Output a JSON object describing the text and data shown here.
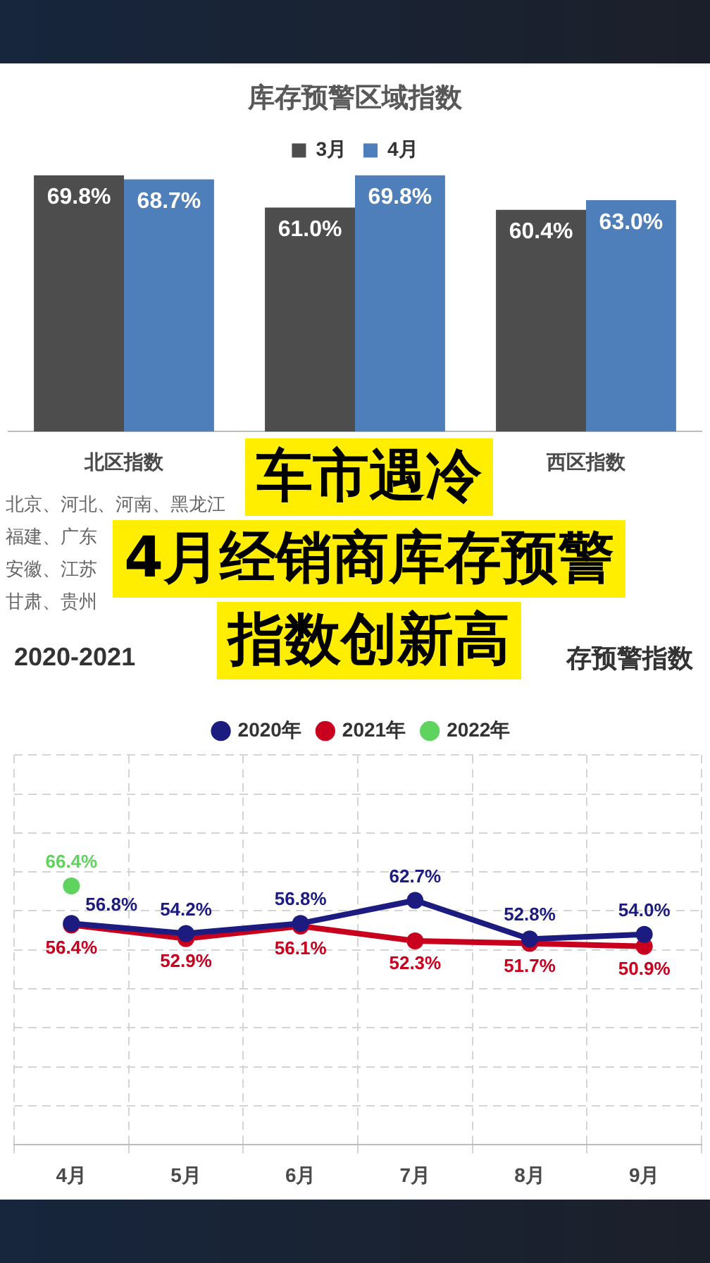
{
  "chart_data": [
    {
      "type": "bar",
      "title": "库存预警区域指数",
      "categories": [
        "北区指数",
        null,
        "西区指数"
      ],
      "series": [
        {
          "name": "3月",
          "color": "#4d4d4d",
          "values": [
            69.8,
            61.0,
            60.4
          ],
          "value_labels": [
            "69.8%",
            "61.0%",
            "60.4%"
          ]
        },
        {
          "name": "4月",
          "color": "#4f7fba",
          "values": [
            68.7,
            69.8,
            63.0
          ],
          "value_labels": [
            "68.7%",
            "69.8%",
            "63.0%"
          ]
        }
      ],
      "ylim": [
        0,
        70
      ],
      "tick_labels": "x",
      "legend": "top",
      "annotations": [
        "北京、河北、河南、黑龙江",
        "福建、广东",
        "安徽、江苏",
        "甘肃、贵州"
      ]
    },
    {
      "type": "other",
      "annotations": [
        "车市遇冷",
        "4月经销商库存预警",
        "指数创新高"
      ]
    },
    {
      "type": "line",
      "title": "2020-2021",
      "annotations": [
        "存预警指数"
      ],
      "categories": [
        "4月",
        "5月",
        "6月",
        "7月",
        "8月",
        "9月"
      ],
      "series": [
        {
          "name": "2020年",
          "color": "#1c1c80",
          "values": [
            56.8,
            54.2,
            56.8,
            62.7,
            52.8,
            54.0
          ],
          "value_labels": [
            "56.8%",
            "54.2%",
            "56.8%",
            "62.7%",
            "52.8%",
            "54.0%"
          ]
        },
        {
          "name": "2021年",
          "color": "#c8001e",
          "values": [
            56.4,
            52.9,
            56.1,
            52.3,
            51.7,
            50.9
          ],
          "value_labels": [
            "56.4%",
            "52.9%",
            "56.1%",
            "52.3%",
            "51.7%",
            "50.9%"
          ]
        },
        {
          "name": "2022年",
          "color": "#5ed35e",
          "values": [
            66.4,
            null,
            null,
            null,
            null,
            null
          ],
          "value_labels": [
            "66.4%",
            null,
            null,
            null,
            null,
            null
          ]
        }
      ],
      "ylim": [
        0,
        100
      ],
      "yticks": [
        {
          "value": 0,
          "label": null
        },
        {
          "value": 10,
          "label": null
        },
        {
          "value": 20,
          "label": null
        },
        {
          "value": 30,
          "label": null
        },
        {
          "value": 40,
          "label": null
        },
        {
          "value": 50,
          "label": null
        },
        {
          "value": 60,
          "label": null
        },
        {
          "value": 70,
          "label": null
        },
        {
          "value": 80,
          "label": null
        },
        {
          "value": 90,
          "label": null
        },
        {
          "value": 100,
          "label": null
        }
      ],
      "tick_labels": "x",
      "grid": true,
      "legend": "top",
      "marker": "circle",
      "line_style": "solid"
    }
  ]
}
